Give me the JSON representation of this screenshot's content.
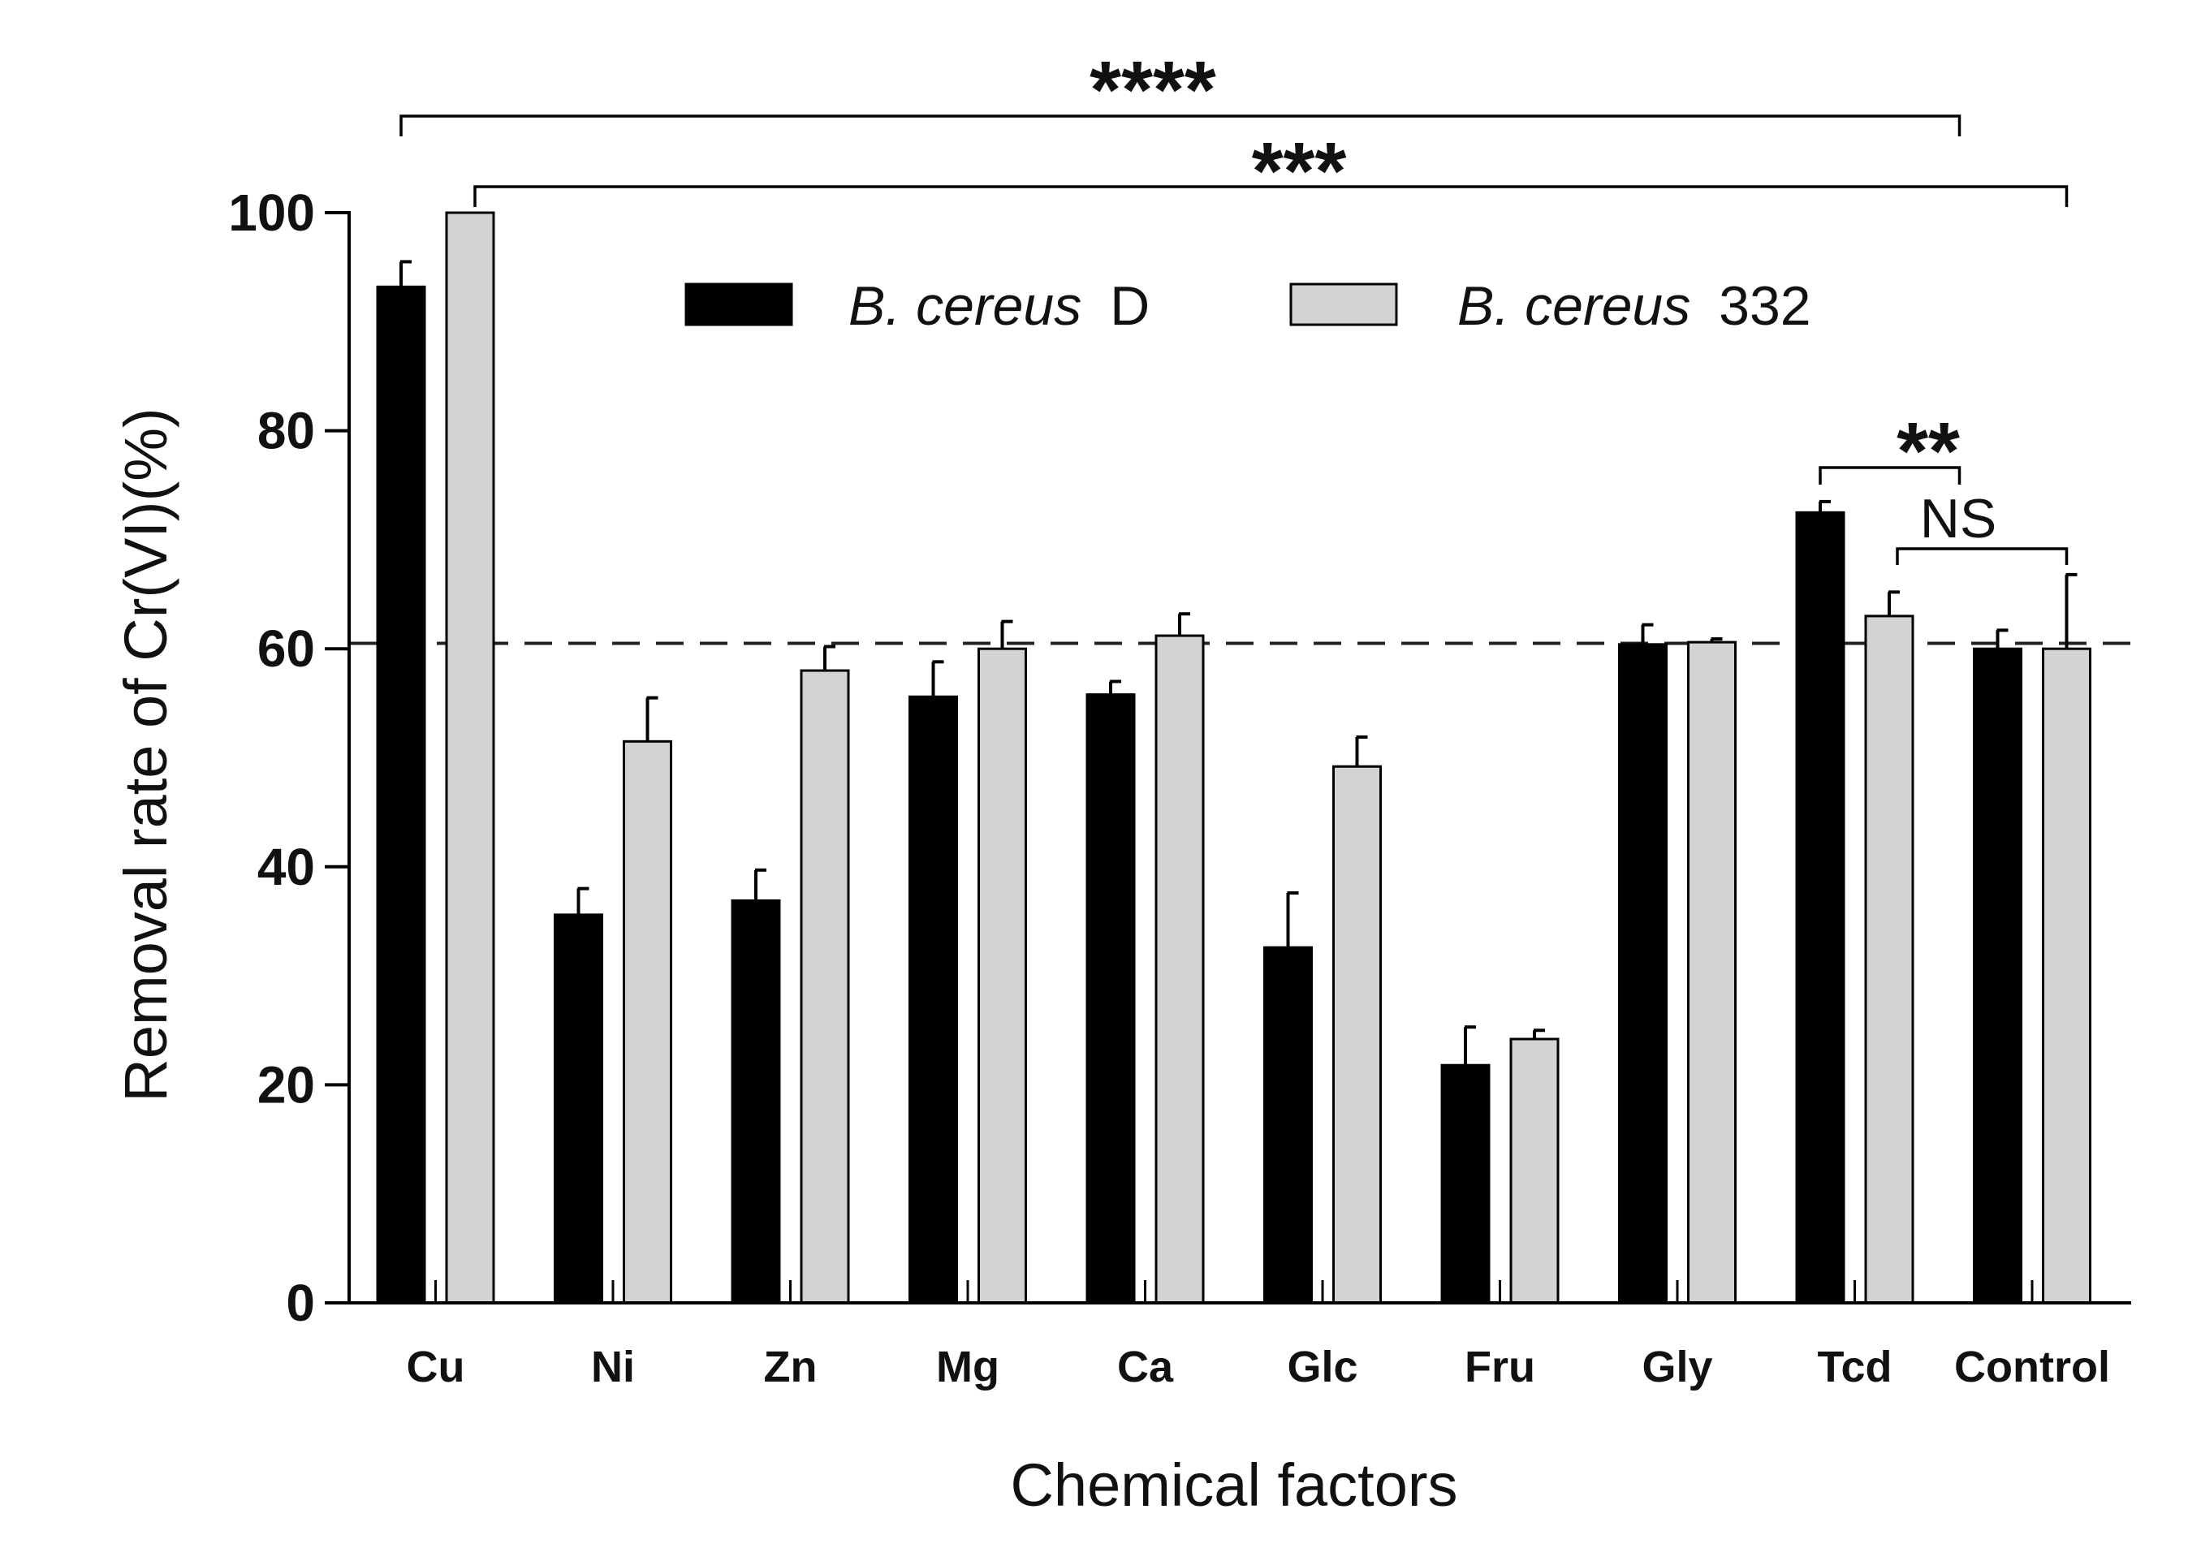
{
  "chart_data": {
    "type": "bar",
    "title": "",
    "xlabel": "Chemical factors",
    "ylabel": "Removal rate of Cr(VI)(%)",
    "ylim": [
      0,
      100
    ],
    "yticks": [
      0,
      20,
      40,
      60,
      80,
      100
    ],
    "categories": [
      "Cu",
      "Ni",
      "Zn",
      "Mg",
      "Ca",
      "Glc",
      "Fru",
      "Gly",
      "Tcd",
      "Control"
    ],
    "series": [
      {
        "name": "B. cereus D",
        "name_italic": "B. cereus",
        "name_suffix": "D",
        "color": "#000000",
        "values": [
          93.2,
          35.6,
          36.9,
          55.6,
          55.8,
          32.6,
          21.8,
          60.4,
          72.5,
          60.0
        ],
        "errors": [
          2.3,
          2.4,
          2.8,
          3.2,
          1.2,
          5.0,
          3.5,
          1.8,
          1.0,
          1.7
        ]
      },
      {
        "name": "B. cereus 332",
        "name_italic": "B. cereus",
        "name_suffix": "332",
        "color": "#d3d3d3",
        "values": [
          100.0,
          51.5,
          58.0,
          60.0,
          61.2,
          49.2,
          24.2,
          60.6,
          63.0,
          60.0
        ],
        "errors": [
          0.0,
          4.0,
          2.2,
          2.5,
          2.0,
          2.7,
          0.8,
          0.3,
          2.2,
          6.8
        ]
      }
    ],
    "reference_line": {
      "y": 60.5,
      "style": "dashed"
    },
    "significance": [
      {
        "label": "****",
        "from": "B. cereus D @ Cu",
        "to": "Tcd / Control gap"
      },
      {
        "label": "***",
        "from": "B. cereus 332 @ Cu",
        "to": "B. cereus 332 @ Control"
      },
      {
        "label": "**",
        "from": "B. cereus D @ Tcd",
        "to": "Tcd / Control gap"
      },
      {
        "label": "NS",
        "from": "B. cereus 332 @ Tcd",
        "to": "B. cereus 332 @ Control"
      }
    ],
    "legend_position": "top-center"
  }
}
